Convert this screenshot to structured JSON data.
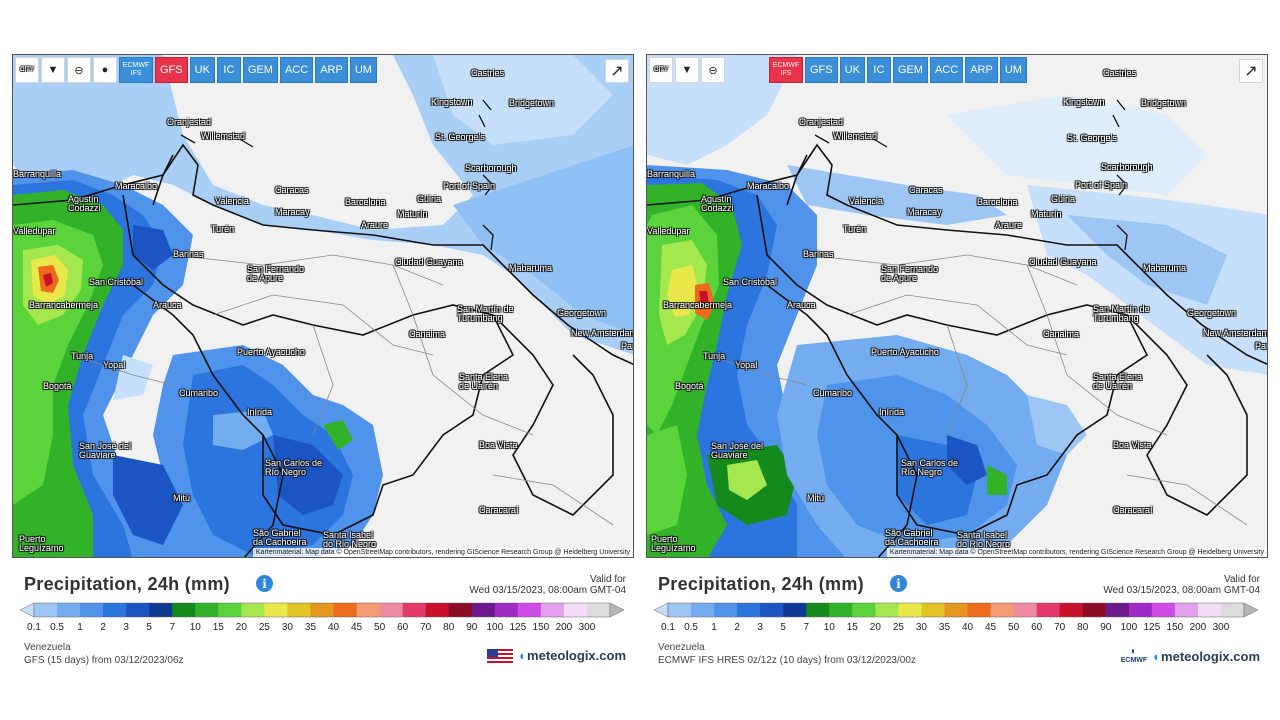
{
  "toolbar": {
    "city_label": "CITY",
    "models": [
      "ECMWF IFS",
      "GFS",
      "UK",
      "IC",
      "GEM",
      "ACC",
      "ARP",
      "UM"
    ]
  },
  "cities": [
    "Castries",
    "Kingstown",
    "Bridgetown",
    "St. George's",
    "Oranjestad",
    "Willemstad",
    "Scarborough",
    "Port of Spain",
    "Barranquilla",
    "Maracaibo",
    "Agustín Codazzi",
    "Valencia",
    "Caracas",
    "Maracay",
    "Barcelona",
    "Güiria",
    "Maturín",
    "Turén",
    "Araure",
    "Barinas",
    "San Fernando de Apure",
    "Ciudad Guayana",
    "Mabaruma",
    "Valledupar",
    "San Cristóbal",
    "Barrancabermeja",
    "Arauca",
    "Georgetown",
    "New Amsterdam",
    "San Martín de Turumbang",
    "Canaima",
    "Puerto Ayacucho",
    "Tunja",
    "Yopal",
    "Bogotá",
    "Cumaribo",
    "Inírida",
    "Santa Elena de Uairén",
    "Boa Vista",
    "San José del Guaviare",
    "San Carlos de Río Negro",
    "Mitú",
    "Caracaraí",
    "Puerto Leguízamo",
    "São Gabriel da Cachoeira",
    "Santa Isabel do Rio Negro",
    "Par"
  ],
  "legend": {
    "title": "Precipitation, 24h (mm)",
    "info_icon": "info-icon",
    "valid_label": "Valid for",
    "valid_time": "Wed 03/15/2023, 08:00am GMT-04",
    "ticks": [
      "0.1",
      "0.5",
      "1",
      "2",
      "3",
      "5",
      "7",
      "10",
      "15",
      "20",
      "25",
      "30",
      "35",
      "40",
      "45",
      "50",
      "60",
      "70",
      "80",
      "90",
      "100",
      "125",
      "150",
      "200",
      "300"
    ],
    "colors": [
      "#c7defa",
      "#9ec6f5",
      "#74acf0",
      "#4f93ea",
      "#2c74de",
      "#1a55c3",
      "#0f3a94",
      "#148a1c",
      "#32b228",
      "#5ad43a",
      "#a4e74e",
      "#e8e84a",
      "#e3c424",
      "#e4971c",
      "#ee6a1c",
      "#f49b74",
      "#f08aa0",
      "#e2386a",
      "#c8102a",
      "#8c0d22",
      "#6a1a8c",
      "#a02ac4",
      "#d04ce6",
      "#e2a0ee",
      "#f3dcf5",
      "#dcdcdc",
      "#b6b6b6"
    ],
    "region": "Venezuela",
    "brand": "meteologix.com"
  },
  "panels": [
    {
      "id": "gfs",
      "active_model": "GFS",
      "source": "GFS (15 days) from 03/12/2023/06z",
      "attribution": "Kartenmaterial: Map data © OpenStreetMap contributors, rendering GIScience Research Group @ Heidelberg University",
      "brand_logo": "us-flag-icon"
    },
    {
      "id": "ecmwf",
      "active_model": "ECMWF IFS",
      "source": "ECMWF IFS HRES 0z/12z (10 days) from 03/12/2023/00z",
      "attribution": "Kartenmaterial: Map data © OpenStreetMap contributors, rendering GIScience Research Group @ Heidelberg University",
      "brand_logo": "ecmwf-logo-icon",
      "brand_logo_text": "ECMWF"
    }
  ]
}
